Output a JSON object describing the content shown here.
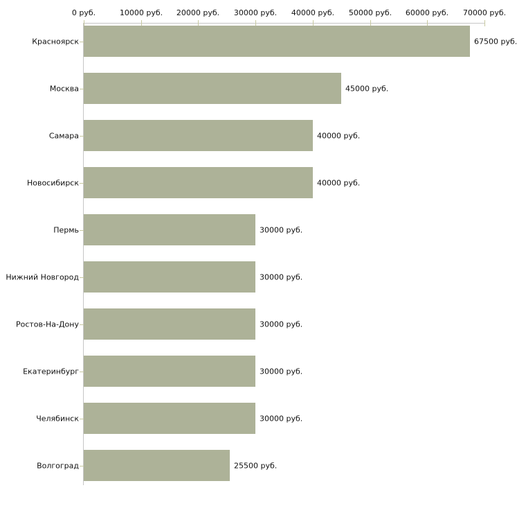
{
  "chart_data": {
    "type": "bar",
    "orientation": "horizontal",
    "title": "",
    "xlabel": "",
    "ylabel": "",
    "categories": [
      "Красноярск",
      "Москва",
      "Самара",
      "Новосибирск",
      "Пермь",
      "Нижний Новгород",
      "Ростов-На-Дону",
      "Екатеринбург",
      "Челябинск",
      "Волгоград"
    ],
    "values": [
      67500,
      45000,
      40000,
      40000,
      30000,
      30000,
      30000,
      30000,
      30000,
      25500
    ],
    "value_labels": [
      "67500 руб.",
      "45000 руб.",
      "40000 руб.",
      "40000 руб.",
      "30000 руб.",
      "30000 руб.",
      "30000 руб.",
      "30000 руб.",
      "30000 руб.",
      "25500 руб."
    ],
    "x_ticks": [
      0,
      10000,
      20000,
      30000,
      40000,
      50000,
      60000,
      70000
    ],
    "x_tick_labels": [
      "0 руб.",
      "10000 руб.",
      "20000 руб.",
      "30000 руб.",
      "40000 руб.",
      "50000 руб.",
      "60000 руб.",
      "70000 руб."
    ],
    "xlim": [
      0,
      70000
    ],
    "grid": false,
    "legend": false,
    "value_label_position": "right-of-bar",
    "axis_position": "top",
    "colors": {
      "bar": "#adb298",
      "axis_line": "#c6c6c6",
      "tick": "#c8c9a0",
      "text": "#111111",
      "background": "#ffffff"
    }
  }
}
